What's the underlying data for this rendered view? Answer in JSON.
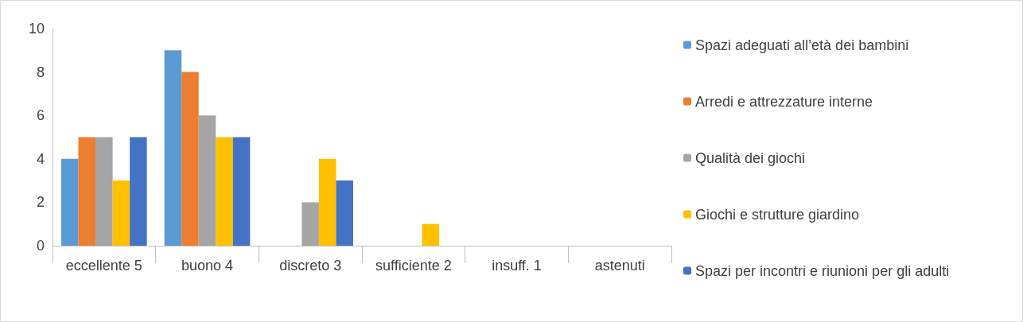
{
  "chart_data": {
    "type": "bar",
    "categories": [
      "eccellente 5",
      "buono 4",
      "discreto 3",
      "sufficiente 2",
      "insuff. 1",
      "astenuti"
    ],
    "series": [
      {
        "name": "Spazi adeguati all’età dei bambini",
        "color": "#5b9bd5",
        "values": [
          4,
          9,
          0,
          0,
          0,
          0
        ]
      },
      {
        "name": "Arredi e attrezzature interne",
        "color": "#ed7d31",
        "values": [
          5,
          8,
          0,
          0,
          0,
          0
        ]
      },
      {
        "name": "Qualità dei giochi",
        "color": "#a5a5a5",
        "values": [
          5,
          6,
          2,
          0,
          0,
          0
        ]
      },
      {
        "name": "Giochi e strutture giardino",
        "color": "#ffc000",
        "values": [
          3,
          5,
          4,
          1,
          0,
          0
        ]
      },
      {
        "name": "Spazi per incontri e riunioni per gli adulti",
        "color": "#4472c4",
        "values": [
          5,
          5,
          3,
          0,
          0,
          0
        ]
      }
    ],
    "ylim": [
      0,
      10
    ],
    "yticks": [
      0,
      2,
      4,
      6,
      8,
      10
    ],
    "grid": false,
    "legend": "right"
  }
}
